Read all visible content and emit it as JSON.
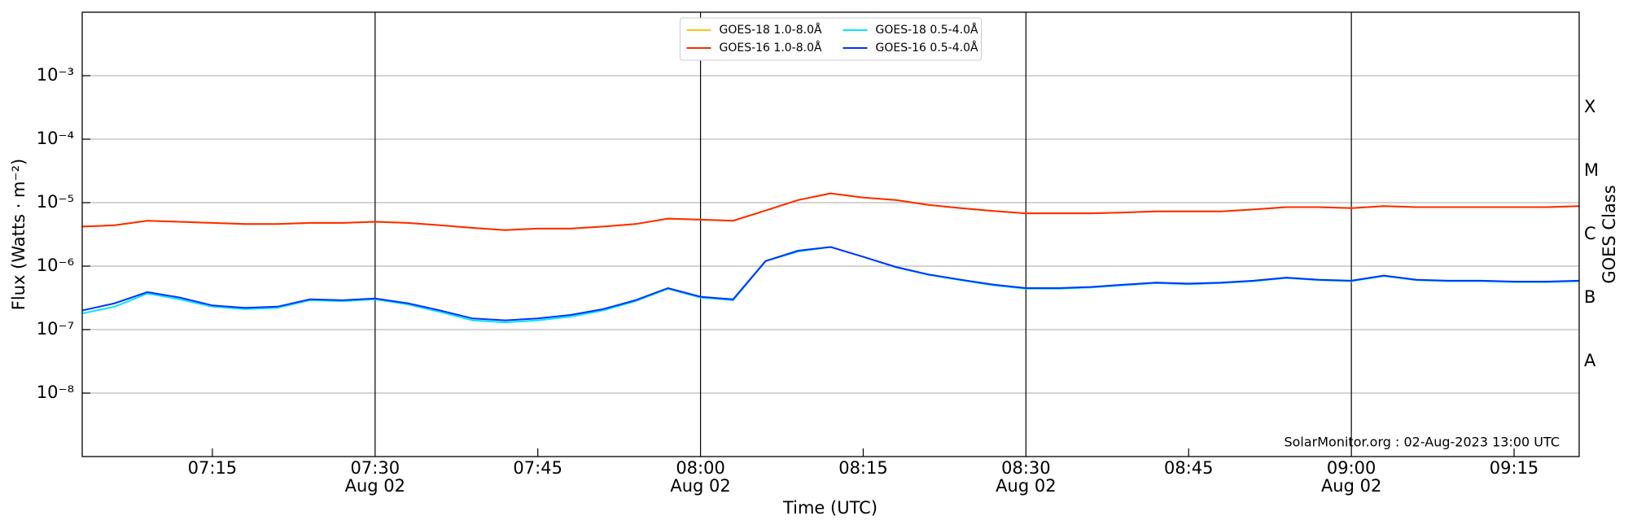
{
  "chart_data": {
    "type": "line",
    "xlabel": "Time (UTC)",
    "ylabel": "Flux (Watts · m⁻²)",
    "y2label": "GOES Class",
    "footer": "SolarMonitor.org : 02-Aug-2023 13:00 UTC",
    "log_y": true,
    "grid": "y",
    "legend": "upper center",
    "x": [
      "2023-08-02T07:03",
      "2023-08-02T07:06",
      "2023-08-02T07:09",
      "2023-08-02T07:12",
      "2023-08-02T07:15",
      "2023-08-02T07:18",
      "2023-08-02T07:21",
      "2023-08-02T07:24",
      "2023-08-02T07:27",
      "2023-08-02T07:30",
      "2023-08-02T07:33",
      "2023-08-02T07:36",
      "2023-08-02T07:39",
      "2023-08-02T07:42",
      "2023-08-02T07:45",
      "2023-08-02T07:48",
      "2023-08-02T07:51",
      "2023-08-02T07:54",
      "2023-08-02T07:57",
      "2023-08-02T08:00",
      "2023-08-02T08:03",
      "2023-08-02T08:06",
      "2023-08-02T08:09",
      "2023-08-02T08:12",
      "2023-08-02T08:15",
      "2023-08-02T08:18",
      "2023-08-02T08:21",
      "2023-08-02T08:24",
      "2023-08-02T08:27",
      "2023-08-02T08:30",
      "2023-08-02T08:33",
      "2023-08-02T08:36",
      "2023-08-02T08:39",
      "2023-08-02T08:42",
      "2023-08-02T08:45",
      "2023-08-02T08:48",
      "2023-08-02T08:51",
      "2023-08-02T08:54",
      "2023-08-02T08:57",
      "2023-08-02T09:00",
      "2023-08-02T09:03",
      "2023-08-02T09:06",
      "2023-08-02T09:09",
      "2023-08-02T09:12",
      "2023-08-02T09:15",
      "2023-08-02T09:18",
      "2023-08-02T09:21"
    ],
    "series": [
      {
        "name": "GOES-18 1.0-8.0Å",
        "color": "#f5c518",
        "values": [
          4.2e-06,
          4.4e-06,
          5.2e-06,
          5e-06,
          4.8e-06,
          4.6e-06,
          4.6e-06,
          4.8e-06,
          4.8e-06,
          5e-06,
          4.8e-06,
          4.4e-06,
          4e-06,
          3.7e-06,
          3.9e-06,
          3.9e-06,
          4.2e-06,
          4.6e-06,
          5.6e-06,
          5.4e-06,
          5.2e-06,
          7.5e-06,
          1.1e-05,
          1.4e-05,
          1.2e-05,
          1.1e-05,
          9.2e-06,
          8.2e-06,
          7.4e-06,
          6.8e-06,
          6.8e-06,
          6.8e-06,
          7e-06,
          7.3e-06,
          7.3e-06,
          7.3e-06,
          7.8e-06,
          8.5e-06,
          8.5e-06,
          8.2e-06,
          8.8e-06,
          8.5e-06,
          8.5e-06,
          8.5e-06,
          8.5e-06,
          8.5e-06,
          8.8e-06
        ]
      },
      {
        "name": "GOES-16 1.0-8.0Å",
        "color": "#ff2a00",
        "values": [
          4.2e-06,
          4.4e-06,
          5.2e-06,
          5e-06,
          4.8e-06,
          4.6e-06,
          4.6e-06,
          4.8e-06,
          4.8e-06,
          5e-06,
          4.8e-06,
          4.4e-06,
          4e-06,
          3.7e-06,
          3.9e-06,
          3.9e-06,
          4.2e-06,
          4.6e-06,
          5.6e-06,
          5.4e-06,
          5.2e-06,
          7.5e-06,
          1.1e-05,
          1.4e-05,
          1.2e-05,
          1.1e-05,
          9.2e-06,
          8.2e-06,
          7.4e-06,
          6.8e-06,
          6.8e-06,
          6.8e-06,
          7e-06,
          7.3e-06,
          7.3e-06,
          7.3e-06,
          7.8e-06,
          8.5e-06,
          8.5e-06,
          8.2e-06,
          8.8e-06,
          8.5e-06,
          8.5e-06,
          8.5e-06,
          8.5e-06,
          8.5e-06,
          8.8e-06
        ]
      },
      {
        "name": "GOES-18 0.5-4.0Å",
        "color": "#00e5ff",
        "values": [
          1.8e-07,
          2.3e-07,
          3.7e-07,
          3e-07,
          2.3e-07,
          2.1e-07,
          2.2e-07,
          2.9e-07,
          2.8e-07,
          3e-07,
          2.5e-07,
          1.9e-07,
          1.4e-07,
          1.3e-07,
          1.4e-07,
          1.6e-07,
          2e-07,
          2.8e-07,
          4.4e-07,
          3.2e-07,
          2.9e-07,
          1.2e-06,
          1.7e-06,
          2e-06,
          1.4e-06,
          9.6e-07,
          7.3e-07,
          6e-07,
          5e-07,
          4.4e-07,
          4.4e-07,
          4.6e-07,
          5e-07,
          5.4e-07,
          5.2e-07,
          5.4e-07,
          5.8e-07,
          6.5e-07,
          6e-07,
          5.8e-07,
          7e-07,
          6e-07,
          5.8e-07,
          5.8e-07,
          5.6e-07,
          5.6e-07,
          5.8e-07
        ]
      },
      {
        "name": "GOES-16 0.5-4.0Å",
        "color": "#0033ff",
        "values": [
          2e-07,
          2.6e-07,
          3.9e-07,
          3.2e-07,
          2.4e-07,
          2.2e-07,
          2.3e-07,
          3e-07,
          2.9e-07,
          3.1e-07,
          2.6e-07,
          2e-07,
          1.5e-07,
          1.4e-07,
          1.5e-07,
          1.7e-07,
          2.1e-07,
          2.9e-07,
          4.5e-07,
          3.3e-07,
          3e-07,
          1.2e-06,
          1.75e-06,
          2e-06,
          1.4e-06,
          9.7e-07,
          7.4e-07,
          6.1e-07,
          5.1e-07,
          4.5e-07,
          4.5e-07,
          4.7e-07,
          5.1e-07,
          5.5e-07,
          5.3e-07,
          5.5e-07,
          5.9e-07,
          6.6e-07,
          6.1e-07,
          5.9e-07,
          7.1e-07,
          6.1e-07,
          5.9e-07,
          5.9e-07,
          5.7e-07,
          5.7e-07,
          5.9e-07
        ]
      }
    ],
    "xlim": [
      "2023-08-02T07:03",
      "2023-08-02T09:21"
    ],
    "xticks": [
      {
        "value": "2023-08-02T07:15",
        "label": "07:15"
      },
      {
        "value": "2023-08-02T07:45",
        "label": "07:45"
      },
      {
        "value": "2023-08-02T08:15",
        "label": "08:15"
      },
      {
        "value": "2023-08-02T08:45",
        "label": "08:45"
      },
      {
        "value": "2023-08-02T09:15",
        "label": "09:15"
      }
    ],
    "xticks_major": [
      {
        "value": "2023-08-02T07:30",
        "label": "07:30",
        "date": "Aug 02"
      },
      {
        "value": "2023-08-02T08:00",
        "label": "08:00",
        "date": "Aug 02"
      },
      {
        "value": "2023-08-02T08:30",
        "label": "08:30",
        "date": "Aug 02"
      },
      {
        "value": "2023-08-02T09:00",
        "label": "09:00",
        "date": "Aug 02"
      }
    ],
    "ylim": [
      1e-09,
      0.01
    ],
    "yticks": [
      {
        "value": 1e-08,
        "label": "10⁻⁸"
      },
      {
        "value": 1e-07,
        "label": "10⁻⁷"
      },
      {
        "value": 1e-06,
        "label": "10⁻⁶"
      },
      {
        "value": 1e-05,
        "label": "10⁻⁵"
      },
      {
        "value": 0.0001,
        "label": "10⁻⁴"
      },
      {
        "value": 0.001,
        "label": "10⁻³"
      }
    ],
    "y2lim": [
      1e-09,
      0.01
    ],
    "y2ticks": [
      {
        "value": 3.16e-08,
        "label": "A"
      },
      {
        "value": 3.16e-07,
        "label": "B"
      },
      {
        "value": 3.16e-06,
        "label": "C"
      },
      {
        "value": 3.16e-05,
        "label": "M"
      },
      {
        "value": 0.000316,
        "label": "X"
      }
    ]
  }
}
